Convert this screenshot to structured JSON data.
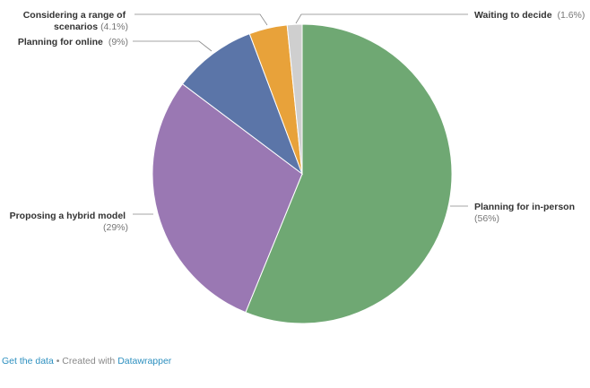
{
  "chart_data": {
    "type": "pie",
    "slices": [
      {
        "label": "Planning for in-person",
        "percent_text": "(56%)",
        "value": 56,
        "color": "#6fa873"
      },
      {
        "label": "Proposing a hybrid model",
        "percent_text": "(29%)",
        "value": 29,
        "color": "#9a78b3"
      },
      {
        "label": "Planning for online",
        "percent_text": "(9%)",
        "value": 9,
        "color": "#5b75a8"
      },
      {
        "label": "Considering a range of scenarios",
        "percent_text": "(4.1%)",
        "value": 4.1,
        "color": "#e8a23a"
      },
      {
        "label": "Waiting to decide",
        "percent_text": "(1.6%)",
        "value": 1.6,
        "color": "#cfcfcf"
      }
    ],
    "label_lines": {
      "in_person": "Planning for in-person",
      "hybrid": "Proposing a hybrid model",
      "online": "Planning for online",
      "scenarios_line1": "Considering a range of",
      "scenarios_line2": "scenarios",
      "waiting": "Waiting to decide"
    }
  },
  "footer": {
    "get_data": "Get the data",
    "separator": "• Created with",
    "datawrapper": "Datawrapper"
  }
}
